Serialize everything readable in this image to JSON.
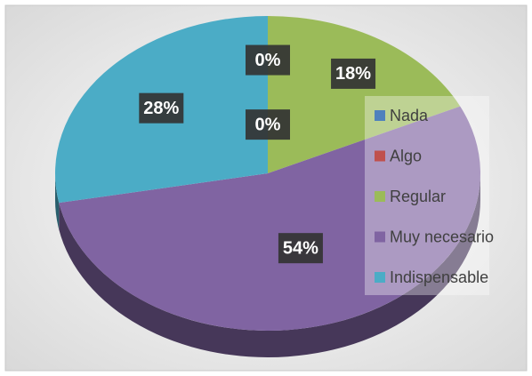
{
  "chart_data": {
    "type": "pie",
    "categories": [
      "Nada",
      "Algo",
      "Regular",
      "Muy necesario",
      "Indispensable"
    ],
    "values": [
      0,
      0,
      18,
      54,
      28
    ],
    "value_labels": [
      "0%",
      "0%",
      "18%",
      "54%",
      "28%"
    ],
    "colors": [
      "#4f81bd",
      "#c0504d",
      "#9bbb59",
      "#8064a2",
      "#4bacc6"
    ],
    "legend": "right"
  }
}
